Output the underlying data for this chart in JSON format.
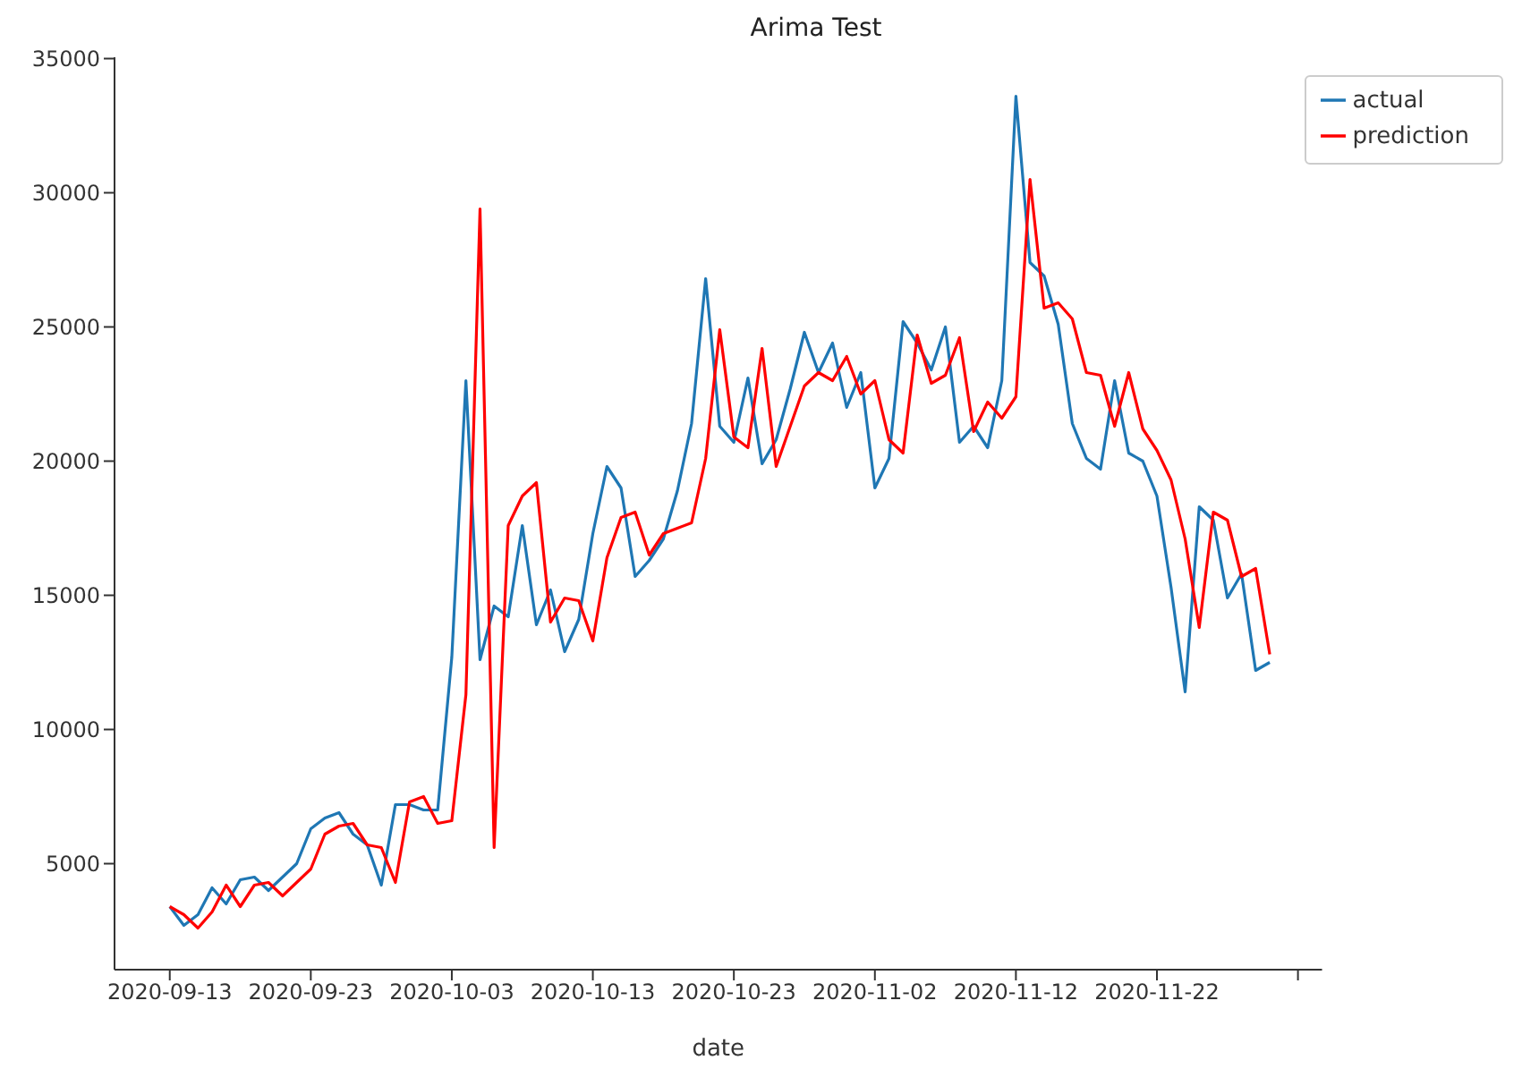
{
  "chart_data": {
    "type": "line",
    "title": "Arima Test",
    "xlabel": "date",
    "x": [
      "2020-09-13",
      "2020-09-14",
      "2020-09-15",
      "2020-09-16",
      "2020-09-17",
      "2020-09-18",
      "2020-09-19",
      "2020-09-20",
      "2020-09-21",
      "2020-09-22",
      "2020-09-23",
      "2020-09-24",
      "2020-09-25",
      "2020-09-26",
      "2020-09-27",
      "2020-09-28",
      "2020-09-29",
      "2020-09-30",
      "2020-10-01",
      "2020-10-02",
      "2020-10-03",
      "2020-10-04",
      "2020-10-05",
      "2020-10-06",
      "2020-10-07",
      "2020-10-08",
      "2020-10-09",
      "2020-10-10",
      "2020-10-11",
      "2020-10-12",
      "2020-10-13",
      "2020-10-14",
      "2020-10-15",
      "2020-10-16",
      "2020-10-17",
      "2020-10-18",
      "2020-10-19",
      "2020-10-20",
      "2020-10-21",
      "2020-10-22",
      "2020-10-23",
      "2020-10-24",
      "2020-10-25",
      "2020-10-26",
      "2020-10-27",
      "2020-10-28",
      "2020-10-29",
      "2020-10-30",
      "2020-10-31",
      "2020-11-01",
      "2020-11-02",
      "2020-11-03",
      "2020-11-04",
      "2020-11-05",
      "2020-11-06",
      "2020-11-07",
      "2020-11-08",
      "2020-11-09",
      "2020-11-10",
      "2020-11-11",
      "2020-11-12",
      "2020-11-13",
      "2020-11-14",
      "2020-11-15",
      "2020-11-16",
      "2020-11-17",
      "2020-11-18",
      "2020-11-19",
      "2020-11-20",
      "2020-11-21",
      "2020-11-22",
      "2020-11-23",
      "2020-11-24",
      "2020-11-25",
      "2020-11-26",
      "2020-11-27",
      "2020-11-28",
      "2020-11-29",
      "2020-11-30"
    ],
    "series": [
      {
        "name": "actual",
        "color": "#1f77b4",
        "values": [
          3400,
          2700,
          3100,
          4100,
          3500,
          4400,
          4500,
          4000,
          4500,
          5000,
          6300,
          6700,
          6900,
          6100,
          5700,
          4200,
          7200,
          7200,
          7000,
          7000,
          12700,
          23000,
          12600,
          14600,
          14200,
          17600,
          13900,
          15200,
          12900,
          14100,
          17300,
          19800,
          19000,
          15700,
          16300,
          17100,
          18900,
          21400,
          26800,
          21300,
          20700,
          23100,
          19900,
          20800,
          22700,
          24800,
          23300,
          24400,
          22000,
          23300,
          19000,
          20100,
          25200,
          24400,
          23400,
          25000,
          20700,
          21300,
          20500,
          23000,
          33600,
          27400,
          26900,
          25100,
          21400,
          20100,
          19700,
          23000,
          20300,
          20000,
          18700,
          15300,
          11400,
          18300,
          17800,
          14900,
          15800,
          12200,
          12500
        ]
      },
      {
        "name": "prediction",
        "color": "#ff0000",
        "values": [
          3400,
          3100,
          2600,
          3200,
          4200,
          3400,
          4200,
          4300,
          3800,
          4300,
          4800,
          6100,
          6400,
          6500,
          5700,
          5600,
          4300,
          7300,
          7500,
          6500,
          6600,
          11300,
          29400,
          5600,
          17600,
          18700,
          19200,
          14000,
          14900,
          14800,
          13300,
          16400,
          17900,
          18100,
          16500,
          17300,
          17500,
          17700,
          20100,
          24900,
          20900,
          20500,
          24200,
          19800,
          21300,
          22800,
          23300,
          23000,
          23900,
          22500,
          23000,
          20800,
          20300,
          24700,
          22900,
          23200,
          24600,
          21100,
          22200,
          21600,
          22400,
          30500,
          25700,
          25900,
          25300,
          23300,
          23200,
          21300,
          23300,
          21200,
          20400,
          19300,
          17100,
          13800,
          18100,
          17800,
          15700,
          16000,
          12800
        ]
      }
    ],
    "xlim": [
      "2020-09-09T02:00",
      "2020-12-03T17:00"
    ],
    "xticks": [
      "2020-09-13",
      "2020-09-23",
      "2020-10-03",
      "2020-10-13",
      "2020-10-23",
      "2020-11-02",
      "2020-11-12",
      "2020-11-22",
      {
        "value": "2020-12-02",
        "label": null
      }
    ],
    "ylim": [
      1050,
      35050
    ],
    "yticks": [
      5000,
      10000,
      15000,
      20000,
      25000,
      30000,
      35000
    ],
    "legend": "top right",
    "grid": false,
    "marker": "none",
    "line_style": "solid"
  }
}
